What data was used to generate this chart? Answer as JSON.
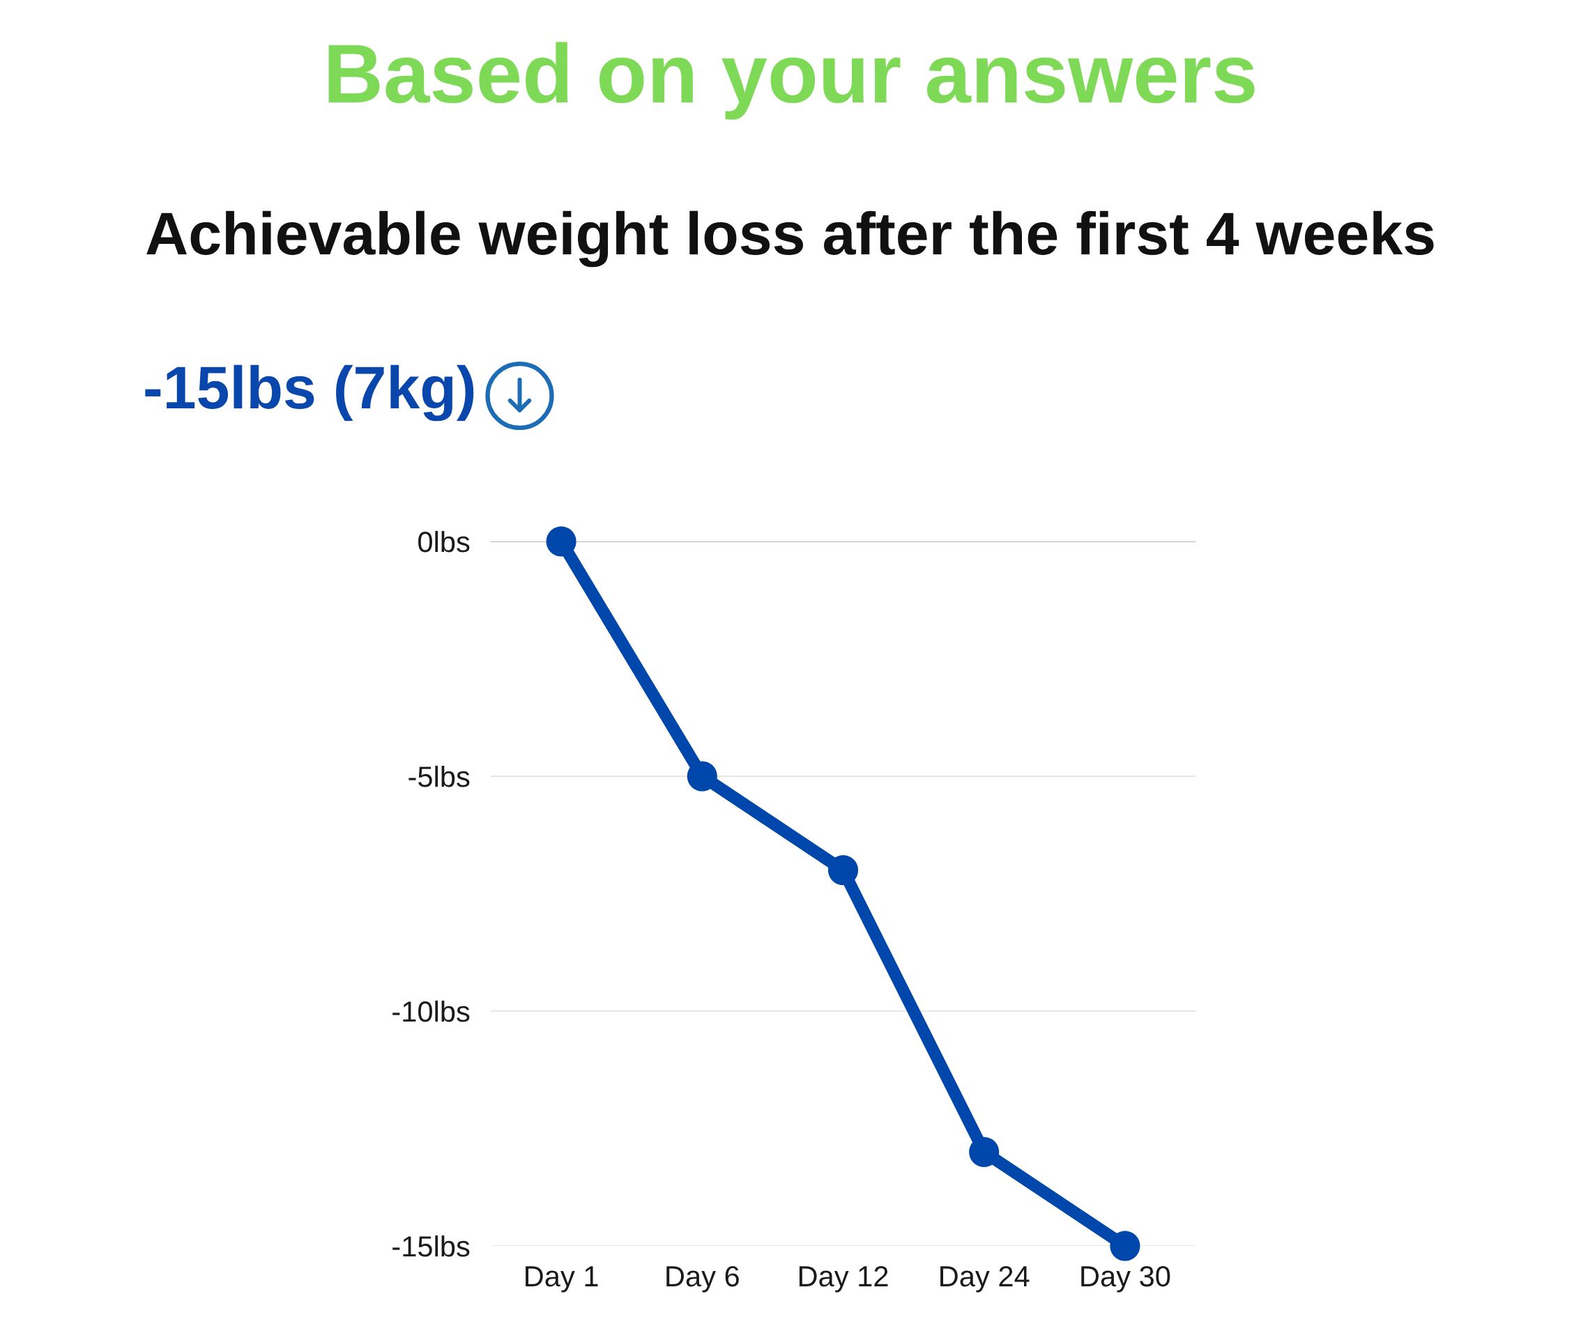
{
  "chart_data": {
    "type": "line",
    "title": "Based on your answers",
    "subtitle": "Achievable weight loss after the first 4 weeks",
    "annotations": [
      "-15lbs (7kg)"
    ],
    "categories": [
      "Day 1",
      "Day 6",
      "Day 12",
      "Day 24",
      "Day 30"
    ],
    "series": [
      {
        "color": "#0047ab",
        "values": [
          0,
          -5,
          -7,
          -13,
          -15
        ]
      }
    ],
    "ylim": [
      -15,
      0
    ],
    "yticks": [
      {
        "value": 0,
        "label": "0lbs"
      },
      {
        "value": -5,
        "label": "-5lbs"
      },
      {
        "value": -10,
        "label": "-10lbs"
      },
      {
        "value": -15,
        "label": "-15lbs"
      }
    ],
    "grid": "y",
    "marker": "circle",
    "line_style": "solid",
    "ref_lines": [
      {
        "axis": "y",
        "value": 0,
        "color": "#b3b3b3"
      }
    ]
  }
}
